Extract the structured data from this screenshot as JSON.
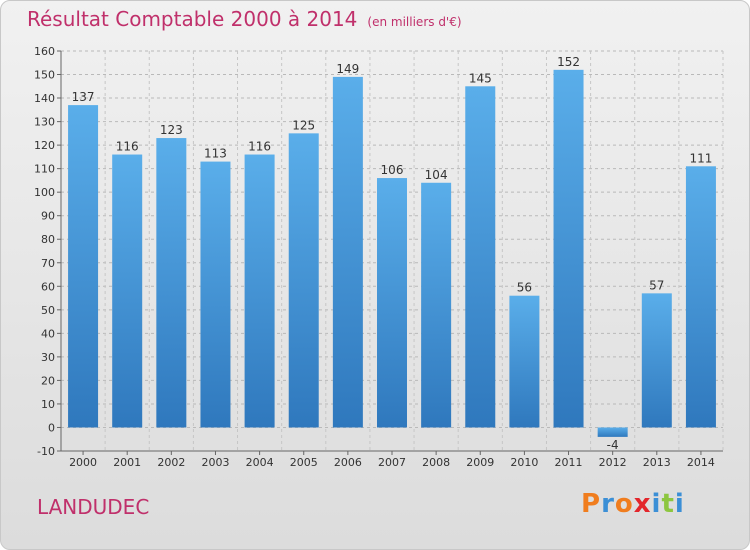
{
  "title": {
    "main": "Résultat Comptable 2000 à 2014",
    "unit": "(en milliers d'€)"
  },
  "place": "LANDUDEC",
  "brand": {
    "name": "Proxiti",
    "letters": [
      "P",
      "r",
      "o",
      "x",
      "i",
      "t",
      "i"
    ],
    "colors": [
      "#f07d1e",
      "#3b8fd6",
      "#f07d1e",
      "#e3262b",
      "#3b8fd6",
      "#8dc63f",
      "#3b8fd6"
    ]
  },
  "colors": {
    "title": "#c0306b",
    "bar": "#4d9fe0"
  },
  "chart_data": {
    "type": "bar",
    "categories": [
      "2000",
      "2001",
      "2002",
      "2003",
      "2004",
      "2005",
      "2006",
      "2007",
      "2008",
      "2009",
      "2010",
      "2011",
      "2012",
      "2013",
      "2014"
    ],
    "values": [
      137,
      116,
      123,
      113,
      116,
      125,
      149,
      106,
      104,
      145,
      56,
      152,
      -4,
      57,
      111
    ],
    "value_labels": [
      "137",
      "116",
      "123",
      "113",
      "116",
      "125",
      "149",
      "106",
      "104",
      "145",
      "56",
      "152",
      "-4",
      "57",
      "111"
    ],
    "yticks": [
      -10,
      0,
      10,
      20,
      30,
      40,
      50,
      60,
      70,
      80,
      90,
      100,
      110,
      120,
      130,
      140,
      150,
      160
    ],
    "ylim": [
      -10,
      160
    ],
    "grid": true,
    "title": "Résultat Comptable 2000 à 2014",
    "xlabel": "",
    "ylabel": ""
  }
}
